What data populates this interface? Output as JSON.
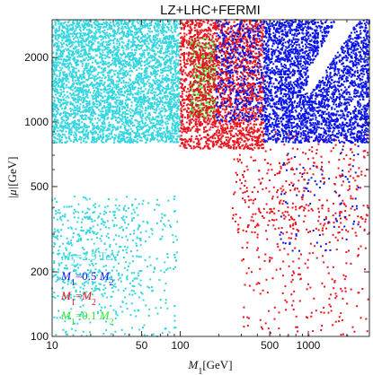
{
  "chart_data": {
    "type": "scatter",
    "title": "LZ+LHC+FERMI",
    "xlabel": {
      "sym": "M",
      "sub": "1",
      "unit": "[GeV]"
    },
    "ylabel": {
      "sym": "|μ|",
      "unit": "[GeV]"
    },
    "x_scale": "log",
    "y_scale": "log",
    "xlim": [
      10,
      3000
    ],
    "ylim": [
      100,
      3000
    ],
    "x_ticks": [
      {
        "value": 10,
        "label": "10"
      },
      {
        "value": 50,
        "label": "50"
      },
      {
        "value": 100,
        "label": "100"
      },
      {
        "value": 500,
        "label": "500"
      },
      {
        "value": 1000,
        "label": "1000"
      }
    ],
    "y_ticks": [
      {
        "value": 100,
        "label": "100"
      },
      {
        "value": 200,
        "label": "200"
      },
      {
        "value": 500,
        "label": "500"
      },
      {
        "value": 1000,
        "label": "1000"
      },
      {
        "value": 2000,
        "label": "2000"
      }
    ],
    "legend_placement": "bottom-left",
    "series": [
      {
        "key": "cyan",
        "color": "#33d6e0",
        "legend": [
          {
            "t": "M"
          },
          {
            "t": "2",
            "sub": true
          },
          {
            "t": "=2.5 TeV"
          }
        ]
      },
      {
        "key": "blue",
        "color": "#0a14e6",
        "legend": [
          {
            "t": "M"
          },
          {
            "t": "1",
            "sub": true
          },
          {
            "t": "=0.5 "
          },
          {
            "t": "M"
          },
          {
            "t": "2",
            "sub": true
          }
        ]
      },
      {
        "key": "red",
        "color": "#e8141e",
        "legend": [
          {
            "t": "M"
          },
          {
            "t": "1",
            "sub": true
          },
          {
            "t": "="
          },
          {
            "t": "M"
          },
          {
            "t": "2",
            "sub": true
          }
        ]
      },
      {
        "key": "green",
        "color": "#2ee62a",
        "legend": [
          {
            "t": "M"
          },
          {
            "t": "1",
            "sub": true
          },
          {
            "t": "=0.1 "
          },
          {
            "t": "M"
          },
          {
            "t": "2",
            "sub": true
          }
        ]
      }
    ],
    "regions": [
      {
        "series": "cyan",
        "x": [
          10,
          100
        ],
        "y": [
          800,
          3000
        ],
        "density": 0.9
      },
      {
        "series": "cyan",
        "x": [
          10,
          95
        ],
        "y": [
          100,
          450
        ],
        "density": 0.08
      },
      {
        "series": "cyan",
        "x": [
          10,
          50
        ],
        "y": [
          150,
          400
        ],
        "density": 0.12
      },
      {
        "series": "green",
        "x": [
          120,
          190
        ],
        "y": [
          1050,
          2500
        ],
        "density": 0.55
      },
      {
        "series": "red",
        "x": [
          100,
          450
        ],
        "y": [
          750,
          3000
        ],
        "density": 0.75
      },
      {
        "series": "red",
        "x": [
          250,
          3000
        ],
        "y": [
          300,
          900
        ],
        "density": 0.1
      },
      {
        "series": "red",
        "x": [
          300,
          3000
        ],
        "y": [
          100,
          400
        ],
        "density": 0.05
      },
      {
        "series": "blue",
        "x": [
          450,
          3000
        ],
        "y": [
          800,
          3000
        ],
        "density": 0.9
      },
      {
        "series": "blue",
        "x": [
          190,
          450
        ],
        "y": [
          1000,
          3000
        ],
        "density": 0.35
      },
      {
        "series": "blue",
        "x": [
          600,
          2500
        ],
        "y": [
          250,
          900
        ],
        "density": 0.04
      }
    ],
    "gaps": [
      {
        "x": [
          1000,
          3000
        ],
        "band": "diagonal"
      }
    ]
  }
}
